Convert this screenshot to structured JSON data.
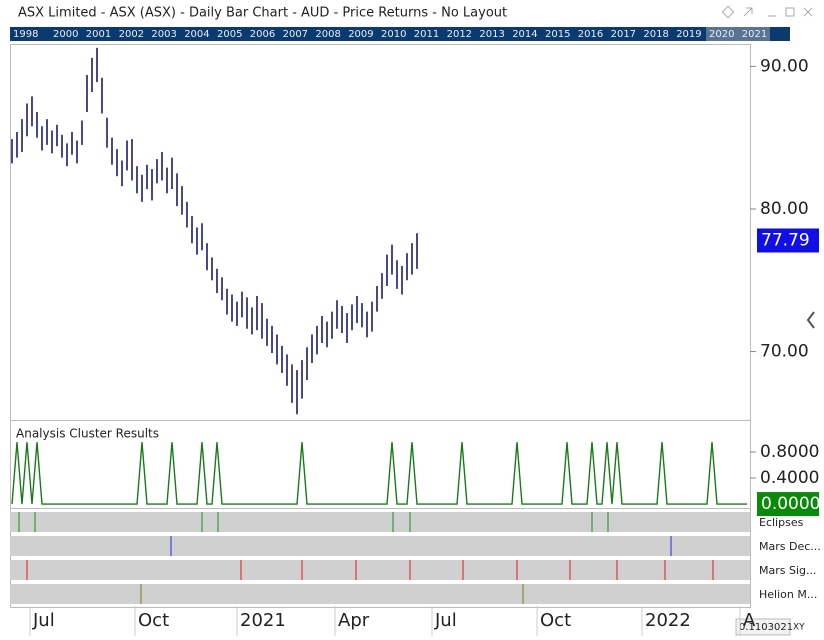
{
  "header": {
    "title": "ASX Limited - ASX (ASX) - Daily Bar Chart - AUD - Price Returns - No Layout"
  },
  "year_strip": [
    "1998",
    "2000",
    "2001",
    "2002",
    "2003",
    "2004",
    "2005",
    "2006",
    "2007",
    "2008",
    "2009",
    "2010",
    "2011",
    "2012",
    "2013",
    "2014",
    "2015",
    "2016",
    "2017",
    "2018",
    "2019",
    "2020",
    "2021"
  ],
  "chart_data": [
    {
      "type": "range",
      "color": "#1a1a6e",
      "high": [
        84.9,
        85.4,
        86.3,
        87.4,
        87.9,
        86.8,
        85.8,
        86.3,
        85.5,
        85.9,
        85.2,
        84.6,
        85.4,
        84.8,
        86.2,
        89.4,
        90.6,
        91.3,
        89.2,
        86.4,
        85.0,
        84.2,
        83.4,
        84.8,
        84.9,
        83.0,
        82.4,
        83.1,
        82.8,
        83.5,
        84.0,
        82.9,
        83.6,
        82.5,
        81.6,
        80.5,
        79.5,
        78.7,
        79.0,
        77.6,
        76.6,
        75.8,
        75.2,
        74.4,
        74.0,
        73.5,
        74.2,
        73.8,
        73.1,
        73.9,
        73.4,
        72.3,
        71.8,
        71.2,
        70.4,
        69.8,
        69.1,
        68.7,
        69.4,
        70.3,
        71.2,
        71.8,
        72.5,
        72.1,
        72.8,
        73.6,
        73.2,
        72.7,
        73.3,
        73.9,
        73.4,
        72.8,
        73.5,
        74.6,
        75.5,
        76.8,
        77.5,
        76.4,
        76.0,
        76.9,
        77.6,
        78.3
      ],
      "low": [
        83.2,
        83.6,
        84.0,
        85.1,
        85.8,
        85.0,
        84.1,
        84.5,
        83.9,
        84.4,
        83.6,
        83.0,
        83.8,
        83.2,
        84.5,
        86.8,
        88.2,
        88.9,
        86.7,
        84.3,
        83.1,
        82.3,
        81.6,
        82.7,
        82.0,
        81.1,
        80.5,
        81.4,
        80.6,
        81.8,
        82.0,
        81.1,
        81.4,
        80.2,
        79.6,
        78.7,
        77.6,
        76.8,
        77.1,
        75.7,
        75.0,
        74.1,
        73.6,
        72.6,
        72.1,
        71.8,
        72.4,
        71.6,
        71.2,
        71.5,
        70.9,
        70.4,
        69.9,
        69.1,
        68.5,
        67.6,
        66.4,
        65.6,
        66.7,
        68.0,
        69.2,
        69.8,
        70.6,
        70.3,
        70.9,
        71.6,
        71.3,
        70.6,
        71.5,
        72.0,
        71.7,
        71.0,
        71.4,
        72.8,
        73.7,
        74.6,
        75.4,
        74.4,
        74.0,
        75.0,
        75.4,
        75.8
      ],
      "ylim": [
        65.2,
        91.5
      ],
      "yticks": [
        {
          "value": 90,
          "label": "90.00"
        },
        {
          "value": 80,
          "label": "80.00"
        },
        {
          "value": 70,
          "label": "70.00"
        }
      ],
      "last_value": {
        "value": 77.79,
        "label": "77.79"
      }
    },
    {
      "type": "line",
      "title": "Analysis Cluster Results",
      "color": "#1a7a1a",
      "values": [
        0,
        0.95,
        0,
        0.95,
        0,
        0.95,
        0,
        0,
        0,
        0,
        0,
        0,
        0,
        0,
        0,
        0,
        0,
        0,
        0,
        0,
        0,
        0,
        0,
        0,
        0,
        0,
        0.95,
        0,
        0,
        0,
        0,
        0,
        0.95,
        0,
        0,
        0,
        0,
        0,
        0.95,
        0,
        0,
        0.95,
        0,
        0,
        0,
        0,
        0,
        0,
        0,
        0,
        0,
        0,
        0,
        0,
        0,
        0,
        0,
        0,
        0.95,
        0,
        0,
        0,
        0,
        0,
        0,
        0,
        0,
        0,
        0,
        0,
        0,
        0,
        0,
        0,
        0,
        0,
        0.95,
        0,
        0,
        0,
        0.95,
        0,
        0,
        0,
        0,
        0,
        0,
        0,
        0,
        0,
        0.95,
        0,
        0,
        0,
        0,
        0,
        0,
        0,
        0,
        0,
        0,
        0.95,
        0,
        0,
        0,
        0,
        0,
        0,
        0,
        0,
        0,
        0.95,
        0,
        0,
        0,
        0,
        0.95,
        0,
        0,
        0.95,
        0,
        0.95,
        0,
        0,
        0,
        0,
        0,
        0,
        0,
        0,
        0.95,
        0,
        0,
        0,
        0,
        0,
        0,
        0,
        0,
        0,
        0.95,
        0,
        0,
        0,
        0,
        0,
        0,
        0
      ],
      "ylim": [
        -0.06,
        1.26
      ],
      "yticks": [
        {
          "value": 0.8,
          "label": "0.8000"
        },
        {
          "value": 0.4,
          "label": "0.4000"
        }
      ],
      "last_value": {
        "value": 0,
        "label": "0.0000"
      }
    }
  ],
  "strips": [
    "Eclipses",
    "Mars Dec...",
    "Mars Sig...",
    "Helion M..."
  ],
  "x_axis_labels": [
    "Jul",
    "Oct",
    "2021",
    "Apr",
    "Jul",
    "Oct",
    "2022",
    "A"
  ],
  "footer": {
    "value": "0.1103021",
    "mode": "XY"
  }
}
